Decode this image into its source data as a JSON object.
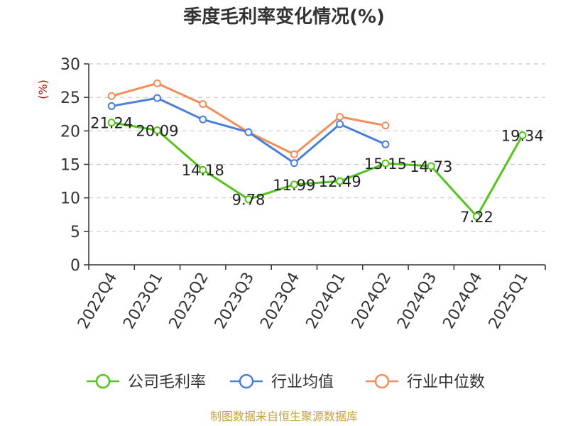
{
  "chart_data": {
    "type": "line",
    "title": "季度毛利率变化情况(%)",
    "ylabel": "(%)",
    "categories": [
      "2022Q4",
      "2023Q1",
      "2023Q2",
      "2023Q3",
      "2023Q4",
      "2024Q1",
      "2024Q2",
      "2024Q3",
      "2024Q4",
      "2025Q1"
    ],
    "ylim": [
      0,
      30
    ],
    "yticks": [
      0,
      5,
      10,
      15,
      20,
      25,
      30
    ],
    "grid": true,
    "legend_position": "bottom",
    "series": [
      {
        "name": "公司毛利率",
        "color": "#52c41a",
        "values": [
          21.24,
          20.09,
          14.18,
          9.78,
          11.99,
          12.49,
          15.15,
          14.73,
          7.22,
          19.34
        ],
        "labels": [
          "21.24",
          "20.09",
          "14.18",
          "9.78",
          "11.99",
          "12.49",
          "15.15",
          "14.73",
          "7.22",
          "19.34"
        ]
      },
      {
        "name": "行业均值",
        "color": "#4a7fd8",
        "values": [
          23.7,
          24.9,
          21.7,
          19.8,
          15.2,
          21.0,
          18.0,
          null,
          null,
          null
        ]
      },
      {
        "name": "行业中位数",
        "color": "#f28c5a",
        "values": [
          25.2,
          27.1,
          24.0,
          19.8,
          16.5,
          22.1,
          20.8,
          null,
          null,
          null
        ]
      }
    ]
  },
  "source": "制图数据来自恒生聚源数据库",
  "colors": {
    "unit": "#cc0000",
    "source": "#c8a33c",
    "grid": "#c8c8c8",
    "axis": "#333333"
  }
}
